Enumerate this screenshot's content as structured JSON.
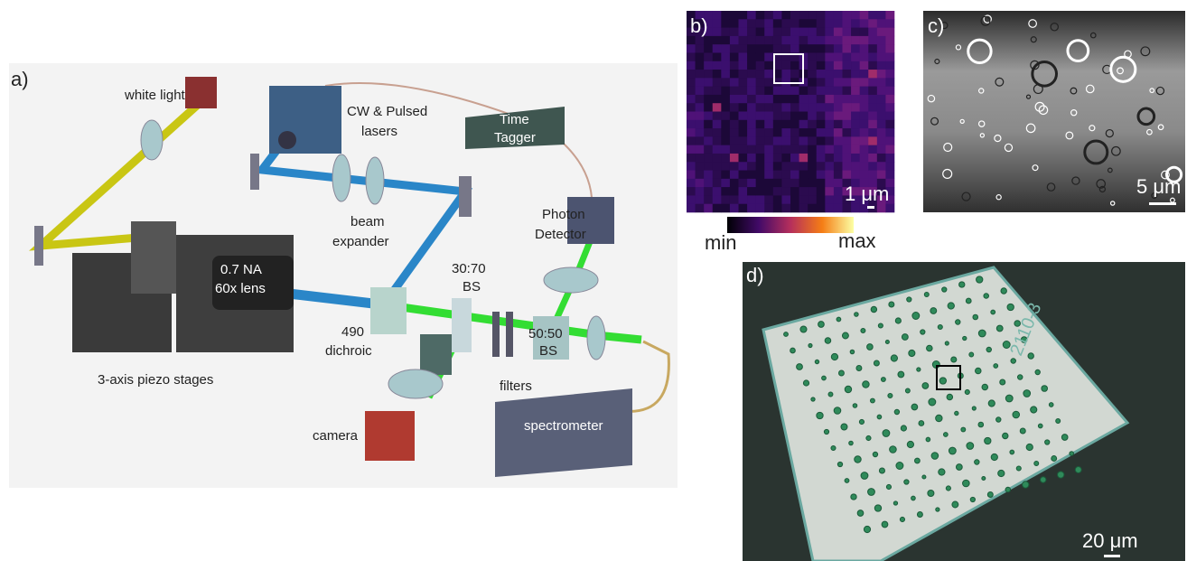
{
  "panel_a": {
    "label": "a)",
    "white_light": "white light",
    "lasers": [
      "CW & Pulsed",
      "lasers"
    ],
    "time_tagger": [
      "Time",
      "Tagger"
    ],
    "beam_expander": [
      "beam",
      "expander"
    ],
    "photon_detector": [
      "Photon",
      "Detector"
    ],
    "objective": [
      "0.7 NA",
      "60x lens"
    ],
    "bs_30_70": [
      "30:70",
      "BS"
    ],
    "dichroic": [
      "490",
      "dichroic"
    ],
    "bs_50_50": [
      "50:50",
      "BS"
    ],
    "stages": "3-axis piezo stages",
    "filters": "filters",
    "camera": "camera",
    "spectrometer": "spectrometer"
  },
  "panel_b": {
    "label": "b)",
    "scale_bar": "1 μm",
    "colorbar": {
      "min": "min",
      "max": "max"
    }
  },
  "panel_c": {
    "label": "c)",
    "scale_bar": "5 μm"
  },
  "panel_d": {
    "label": "d)",
    "scale_bar": "20 μm",
    "sample_id": "2110-3"
  }
}
